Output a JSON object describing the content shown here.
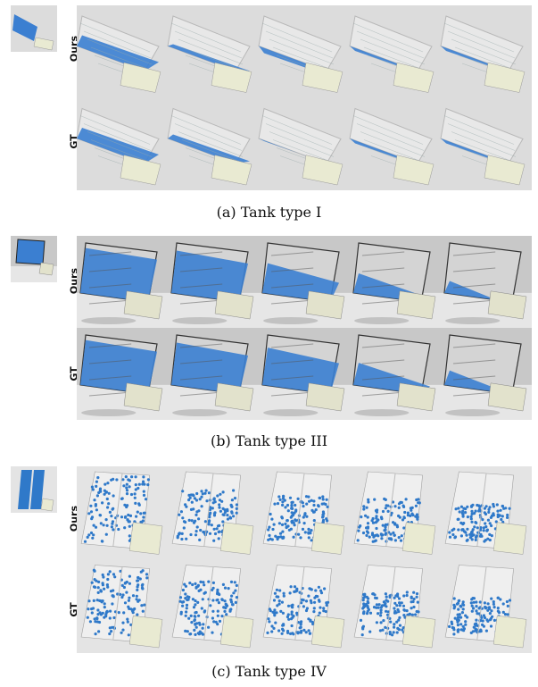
{
  "figures": [
    {
      "id": "a",
      "caption": "(a) Tank type I",
      "rows": [
        {
          "label": "Ours"
        },
        {
          "label": "GT"
        }
      ],
      "frames": 5,
      "fill_levels": {
        "Ours": [
          0.85,
          0.65,
          0.45,
          0.5,
          0.5
        ],
        "GT": [
          0.85,
          0.7,
          0.55,
          0.5,
          0.5
        ]
      },
      "colors": {
        "background": "#dcdcdc",
        "fluid": "#3b7fd1",
        "tank": "#b8b8b8",
        "inset": "#e9ead2"
      }
    },
    {
      "id": "b",
      "caption": "(b) Tank type III",
      "rows": [
        {
          "label": "Ours"
        },
        {
          "label": "GT"
        }
      ],
      "frames": 5,
      "fill_levels": {
        "Ours": [
          0.9,
          0.85,
          0.6,
          0.4,
          0.25
        ],
        "GT": [
          0.9,
          0.85,
          0.75,
          0.45,
          0.3
        ]
      },
      "colors": {
        "background": "#c8c8c8",
        "floor": "#e6e6e6",
        "fluid": "#3b7fd1",
        "tank": "#333333",
        "inset": "#e2e2cc"
      }
    },
    {
      "id": "c",
      "caption": "(c) Tank type IV",
      "rows": [
        {
          "label": "Ours"
        },
        {
          "label": "GT"
        }
      ],
      "frames": 5,
      "fill_levels": {
        "Ours": [
          0.95,
          0.7,
          0.6,
          0.55,
          0.45
        ],
        "GT": [
          0.95,
          0.75,
          0.65,
          0.55,
          0.45
        ]
      },
      "colors": {
        "background": "#e4e4e4",
        "fluid": "#2f79c9",
        "tank": "#a0a0a0",
        "inset": "#e9ead2"
      }
    }
  ]
}
